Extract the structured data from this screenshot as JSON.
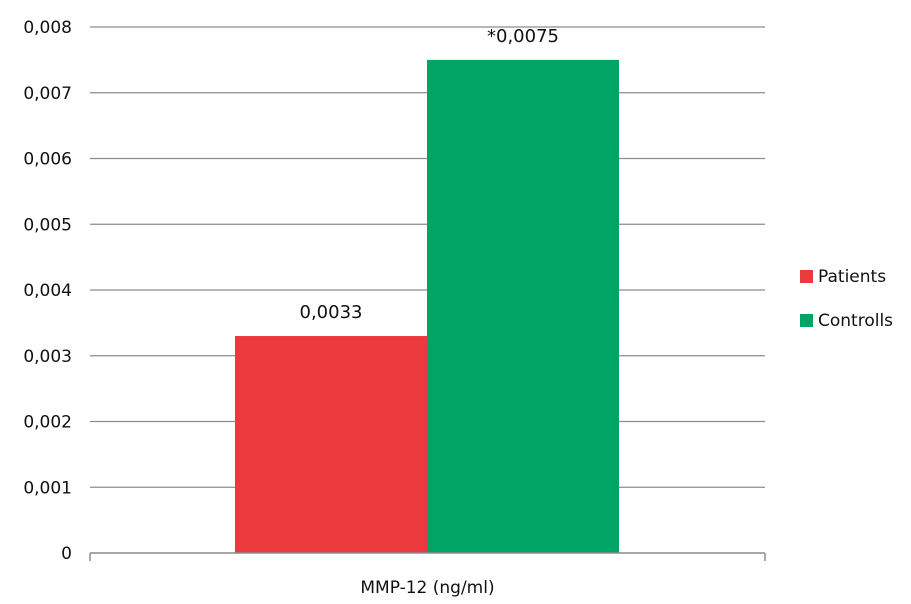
{
  "chart_data": {
    "type": "bar",
    "categories": [
      "MMP-12 (ng/ml)"
    ],
    "series": [
      {
        "name": "Patients",
        "values": [
          0.0033
        ],
        "color": "#ea3a3e",
        "label": "0,0033"
      },
      {
        "name": "Controlls",
        "values": [
          0.0075
        ],
        "color": "#00a565",
        "label": "*0,0075"
      }
    ],
    "xlabel": "MMP-12 (ng/ml)",
    "ylim": [
      0,
      0.008
    ],
    "yticks": [
      0,
      0.001,
      0.002,
      0.003,
      0.004,
      0.005,
      0.006,
      0.007,
      0.008
    ],
    "ytick_labels": [
      "0",
      "0,001",
      "0,002",
      "0,003",
      "0,004",
      "0,005",
      "0,006",
      "0,007",
      "0,008"
    ],
    "grid": true,
    "gridline_color": "#8c8c8c",
    "legend": "right"
  }
}
